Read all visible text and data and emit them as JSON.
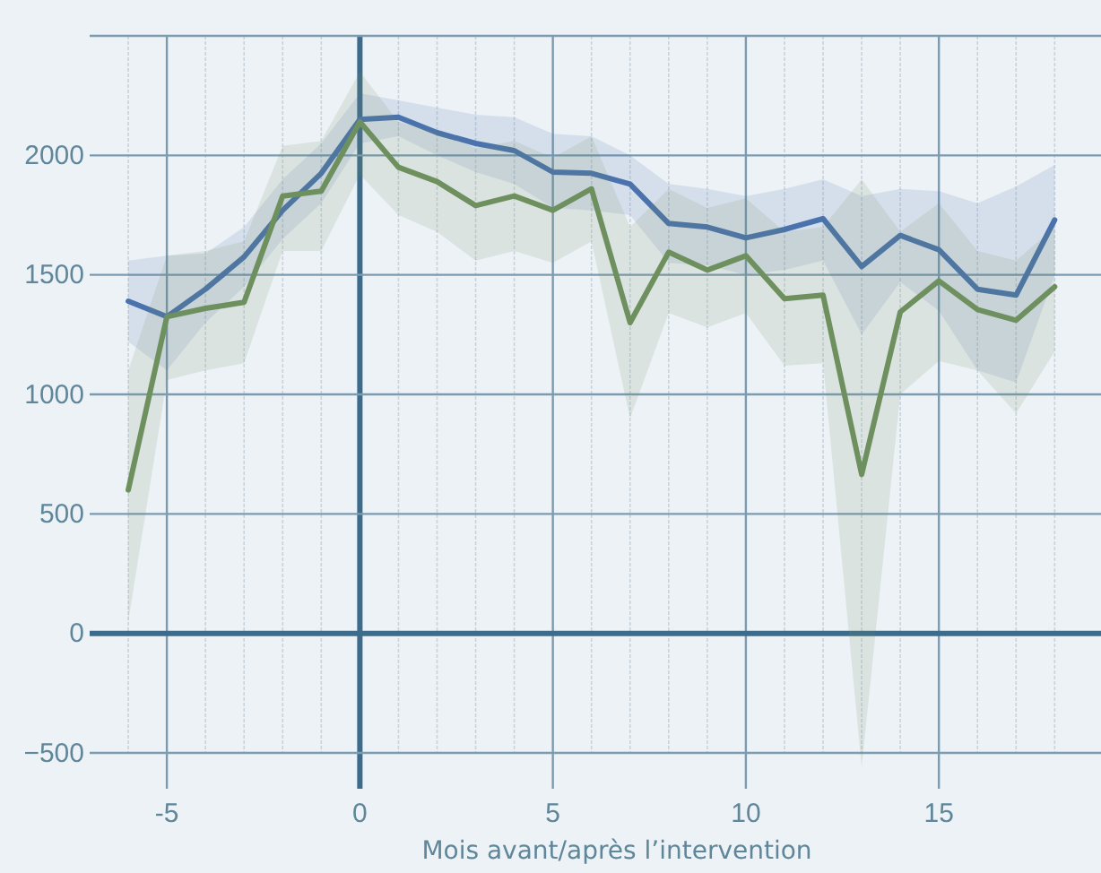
{
  "chart_data": {
    "type": "line",
    "xlabel": "Mois avant/après l’intervention",
    "x": [
      -6,
      -5,
      -4,
      -3,
      -2,
      -1,
      0,
      1,
      2,
      3,
      4,
      5,
      6,
      7,
      8,
      9,
      10,
      11,
      12,
      13,
      14,
      15,
      16,
      17,
      18
    ],
    "series": [
      {
        "color": "#4a72ad",
        "values": [
          1390,
          1325,
          1440,
          1575,
          1770,
          1925,
          2150,
          2160,
          2095,
          2050,
          2020,
          1930,
          1925,
          1880,
          1715,
          1700,
          1655,
          1690,
          1735,
          1535,
          1665,
          1605,
          1440,
          1415,
          1730
        ],
        "upper": [
          1560,
          1580,
          1590,
          1700,
          1900,
          2050,
          2260,
          2230,
          2200,
          2170,
          2160,
          2090,
          2080,
          2000,
          1880,
          1860,
          1830,
          1860,
          1900,
          1830,
          1860,
          1850,
          1800,
          1870,
          1960
        ],
        "lower": [
          1220,
          1100,
          1300,
          1450,
          1650,
          1800,
          2050,
          2080,
          2000,
          1930,
          1880,
          1780,
          1770,
          1750,
          1550,
          1540,
          1500,
          1520,
          1560,
          1250,
          1470,
          1350,
          1100,
          1050,
          1500
        ]
      },
      {
        "color": "#6e8f5e",
        "values": [
          600,
          1325,
          1360,
          1385,
          1830,
          1850,
          2140,
          1950,
          1890,
          1790,
          1830,
          1770,
          1860,
          1300,
          1595,
          1520,
          1580,
          1400,
          1415,
          665,
          1345,
          1475,
          1355,
          1310,
          1450
        ],
        "upper": [
          1100,
          1580,
          1600,
          1640,
          2040,
          2060,
          2350,
          2140,
          2100,
          2030,
          2060,
          1990,
          2080,
          1700,
          1860,
          1780,
          1820,
          1680,
          1700,
          1900,
          1680,
          1800,
          1600,
          1560,
          1700
        ],
        "lower": [
          50,
          1060,
          1100,
          1130,
          1600,
          1600,
          1920,
          1750,
          1680,
          1560,
          1600,
          1550,
          1640,
          900,
          1340,
          1280,
          1340,
          1120,
          1130,
          -560,
          1000,
          1140,
          1100,
          920,
          1180
        ]
      }
    ],
    "xlim": [
      -7,
      19.2
    ],
    "ylim": [
      -650,
      2500
    ],
    "xticks": [
      {
        "value": -6,
        "label": null
      },
      -5,
      {
        "value": -4,
        "label": null
      },
      {
        "value": -3,
        "label": null
      },
      {
        "value": -2,
        "label": null
      },
      {
        "value": -1,
        "label": null
      },
      0,
      {
        "value": 1,
        "label": null
      },
      {
        "value": 2,
        "label": null
      },
      {
        "value": 3,
        "label": null
      },
      {
        "value": 4,
        "label": null
      },
      5,
      {
        "value": 6,
        "label": null
      },
      {
        "value": 7,
        "label": null
      },
      {
        "value": 8,
        "label": null
      },
      {
        "value": 9,
        "label": null
      },
      10,
      {
        "value": 11,
        "label": null
      },
      {
        "value": 12,
        "label": null
      },
      {
        "value": 13,
        "label": null
      },
      {
        "value": 14,
        "label": null
      },
      15,
      {
        "value": 16,
        "label": null
      },
      {
        "value": 17,
        "label": null
      },
      {
        "value": 18,
        "label": null
      }
    ],
    "yticks": [
      -500,
      0,
      500,
      1000,
      1500,
      2000,
      {
        "value": 2500,
        "label": null
      }
    ],
    "grid": true,
    "line_style": "solid",
    "marker": "none"
  }
}
